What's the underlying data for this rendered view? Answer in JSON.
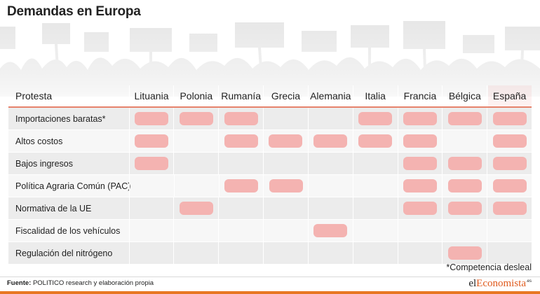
{
  "title": "Demandas en Europa",
  "header": {
    "first_column": "Protesta",
    "countries": [
      "Lituania",
      "Polonia",
      "Rumanía",
      "Grecia",
      "Alemania",
      "Italia",
      "Francia",
      "Bélgica",
      "España"
    ]
  },
  "rows": [
    {
      "label": "Importaciones baratas*",
      "marks": [
        true,
        true,
        true,
        false,
        false,
        true,
        true,
        true,
        true
      ]
    },
    {
      "label": "Altos costos",
      "marks": [
        true,
        false,
        true,
        true,
        true,
        true,
        true,
        false,
        true
      ]
    },
    {
      "label": "Bajos ingresos",
      "marks": [
        true,
        false,
        false,
        false,
        false,
        false,
        true,
        true,
        true
      ]
    },
    {
      "label": "Política Agraria Común (PAC)",
      "marks": [
        false,
        false,
        true,
        true,
        false,
        false,
        true,
        true,
        true
      ]
    },
    {
      "label": "Normativa de la UE",
      "marks": [
        false,
        true,
        false,
        false,
        false,
        false,
        true,
        true,
        true
      ]
    },
    {
      "label": "Fiscalidad de los vehículos",
      "marks": [
        false,
        false,
        false,
        false,
        true,
        false,
        false,
        false,
        false
      ]
    },
    {
      "label": "Regulación del nitrógeno",
      "marks": [
        false,
        false,
        false,
        false,
        false,
        false,
        false,
        true,
        false
      ]
    }
  ],
  "footnote": "*Competencia desleal",
  "source": {
    "label": "Fuente:",
    "text": " POLITICO research y elaboración propia"
  },
  "logo": {
    "part1": "el",
    "part2": "Economista",
    "suffix": ".es"
  },
  "colors": {
    "mark": "#f4b3b1",
    "accent": "#e87722",
    "header_rule": "#e6826b"
  }
}
